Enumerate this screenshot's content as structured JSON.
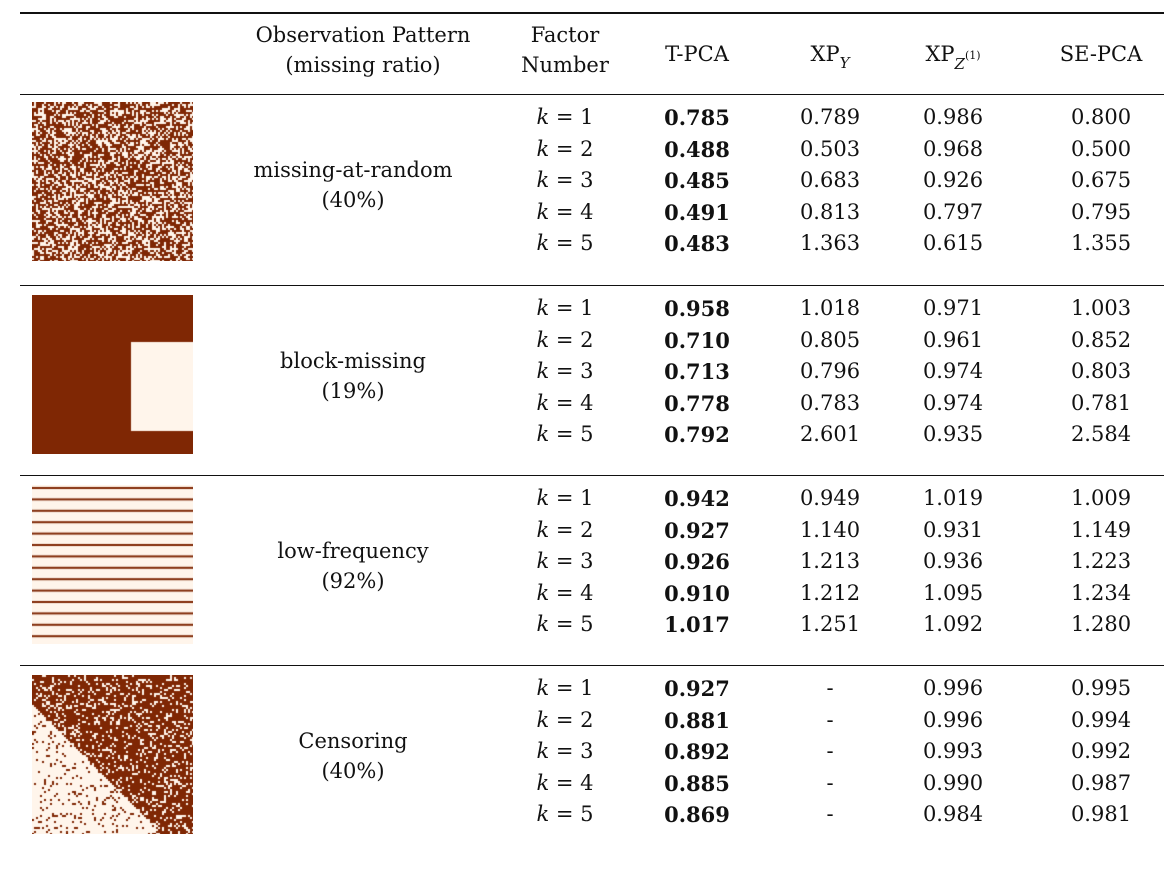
{
  "header": {
    "observation_pattern": "Observation Pattern",
    "missing_ratio": "(missing ratio)",
    "factor": "Factor",
    "number": "Number",
    "tpca": "T-PCA",
    "xpy": "XP",
    "xpy_sub": "Y",
    "xpz": "XP",
    "xpz_sub": "Z",
    "xpz_sup": "(1)",
    "sepca": "SE-PCA"
  },
  "k_prefix": "k",
  "k_eq": " = ",
  "groups": [
    {
      "pattern": "missing-at-random",
      "ratio": "(40%)",
      "rows": [
        {
          "k": "1",
          "tpca": "0.785",
          "xpy": "0.789",
          "xpz": "0.986",
          "sepca": "0.800"
        },
        {
          "k": "2",
          "tpca": "0.488",
          "xpy": "0.503",
          "xpz": "0.968",
          "sepca": "0.500"
        },
        {
          "k": "3",
          "tpca": "0.485",
          "xpy": "0.683",
          "xpz": "0.926",
          "sepca": "0.675"
        },
        {
          "k": "4",
          "tpca": "0.491",
          "xpy": "0.813",
          "xpz": "0.797",
          "sepca": "0.795"
        },
        {
          "k": "5",
          "tpca": "0.483",
          "xpy": "1.363",
          "xpz": "0.615",
          "sepca": "1.355"
        }
      ]
    },
    {
      "pattern": "block-missing",
      "ratio": "(19%)",
      "rows": [
        {
          "k": "1",
          "tpca": "0.958",
          "xpy": "1.018",
          "xpz": "0.971",
          "sepca": "1.003"
        },
        {
          "k": "2",
          "tpca": "0.710",
          "xpy": "0.805",
          "xpz": "0.961",
          "sepca": "0.852"
        },
        {
          "k": "3",
          "tpca": "0.713",
          "xpy": "0.796",
          "xpz": "0.974",
          "sepca": "0.803"
        },
        {
          "k": "4",
          "tpca": "0.778",
          "xpy": "0.783",
          "xpz": "0.974",
          "sepca": "0.781"
        },
        {
          "k": "5",
          "tpca": "0.792",
          "xpy": "2.601",
          "xpz": "0.935",
          "sepca": "2.584"
        }
      ]
    },
    {
      "pattern": "low-frequency",
      "ratio": "(92%)",
      "rows": [
        {
          "k": "1",
          "tpca": "0.942",
          "xpy": "0.949",
          "xpz": "1.019",
          "sepca": "1.009"
        },
        {
          "k": "2",
          "tpca": "0.927",
          "xpy": "1.140",
          "xpz": "0.931",
          "sepca": "1.149"
        },
        {
          "k": "3",
          "tpca": "0.926",
          "xpy": "1.213",
          "xpz": "0.936",
          "sepca": "1.223"
        },
        {
          "k": "4",
          "tpca": "0.910",
          "xpy": "1.212",
          "xpz": "1.095",
          "sepca": "1.234"
        },
        {
          "k": "5",
          "tpca": "1.017",
          "xpy": "1.251",
          "xpz": "1.092",
          "sepca": "1.280"
        }
      ]
    },
    {
      "pattern": "Censoring",
      "ratio": "(40%)",
      "rows": [
        {
          "k": "1",
          "tpca": "0.927",
          "xpy": "-",
          "xpz": "0.996",
          "sepca": "0.995"
        },
        {
          "k": "2",
          "tpca": "0.881",
          "xpy": "-",
          "xpz": "0.996",
          "sepca": "0.994"
        },
        {
          "k": "3",
          "tpca": "0.892",
          "xpy": "-",
          "xpz": "0.993",
          "sepca": "0.992"
        },
        {
          "k": "4",
          "tpca": "0.885",
          "xpy": "-",
          "xpz": "0.990",
          "sepca": "0.987"
        },
        {
          "k": "5",
          "tpca": "0.869",
          "xpy": "-",
          "xpz": "0.984",
          "sepca": "0.981"
        }
      ]
    }
  ],
  "colors": {
    "observed": "#7f2704",
    "missing": "#fff5eb"
  },
  "pattern_icons": [
    "random-mask-icon",
    "block-mask-icon",
    "striped-mask-icon",
    "censoring-mask-icon"
  ]
}
